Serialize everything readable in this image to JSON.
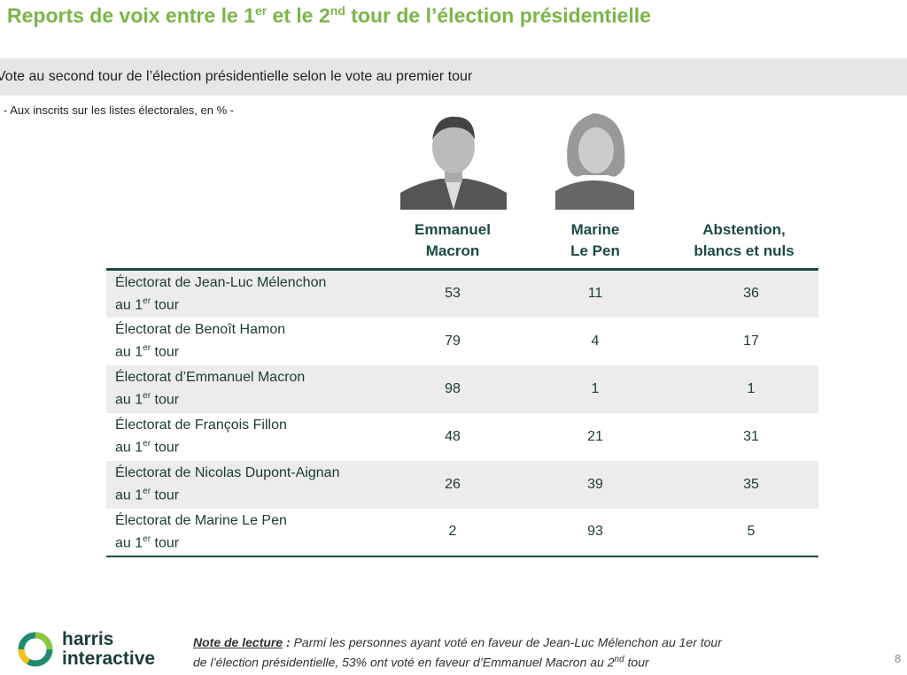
{
  "title": {
    "pre": "Reports de voix entre le 1",
    "sup1": "er",
    "mid": " et le 2",
    "sup2": "nd",
    "post": " tour de l’élection présidentielle"
  },
  "band": "Vote au second tour de l’élection présidentielle selon le vote au premier tour",
  "subtitle": "- Aux inscrits sur les listes électorales, en % -",
  "columns": [
    {
      "l1": "Emmanuel",
      "l2": "Macron"
    },
    {
      "l1": "Marine",
      "l2": "Le Pen"
    },
    {
      "l1": "Abstention,",
      "l2": "blancs et nuls"
    }
  ],
  "rows": [
    {
      "label": "Électorat de Jean-Luc Mélenchon",
      "suffix_pre": "au 1",
      "suffix_sup": "er",
      "suffix_post": " tour",
      "values": [
        "53",
        "11",
        "36"
      ]
    },
    {
      "label": "Électorat de Benoît Hamon",
      "suffix_pre": "au 1",
      "suffix_sup": "er",
      "suffix_post": " tour",
      "values": [
        "79",
        "4",
        "17"
      ]
    },
    {
      "label": "Électorat d’Emmanuel Macron",
      "suffix_pre": "au 1",
      "suffix_sup": "er",
      "suffix_post": " tour",
      "values": [
        "98",
        "1",
        "1"
      ]
    },
    {
      "label": "Électorat de François Fillon",
      "suffix_pre": "au 1",
      "suffix_sup": "er",
      "suffix_post": " tour",
      "values": [
        "48",
        "21",
        "31"
      ]
    },
    {
      "label": "Électorat de Nicolas Dupont-Aignan",
      "suffix_pre": "au 1",
      "suffix_sup": "er",
      "suffix_post": " tour",
      "values": [
        "26",
        "39",
        "35"
      ]
    },
    {
      "label": "Électorat de Marine Le Pen",
      "suffix_pre": "au 1",
      "suffix_sup": "er",
      "suffix_post": " tour",
      "values": [
        "2",
        "93",
        "5"
      ]
    }
  ],
  "logo": {
    "l1": "harris",
    "l2": "interactive"
  },
  "note": {
    "label": "Note de lecture",
    "sep": " : ",
    "line1": "Parmi les personnes ayant voté en faveur de Jean-Luc Mélenchon au 1er tour",
    "line2_pre": "de l’élection présidentielle, 53% ont voté en faveur d’Emmanuel Macron au 2",
    "line2_sup": "nd",
    "line2_post": " tour"
  },
  "page_number": "8"
}
